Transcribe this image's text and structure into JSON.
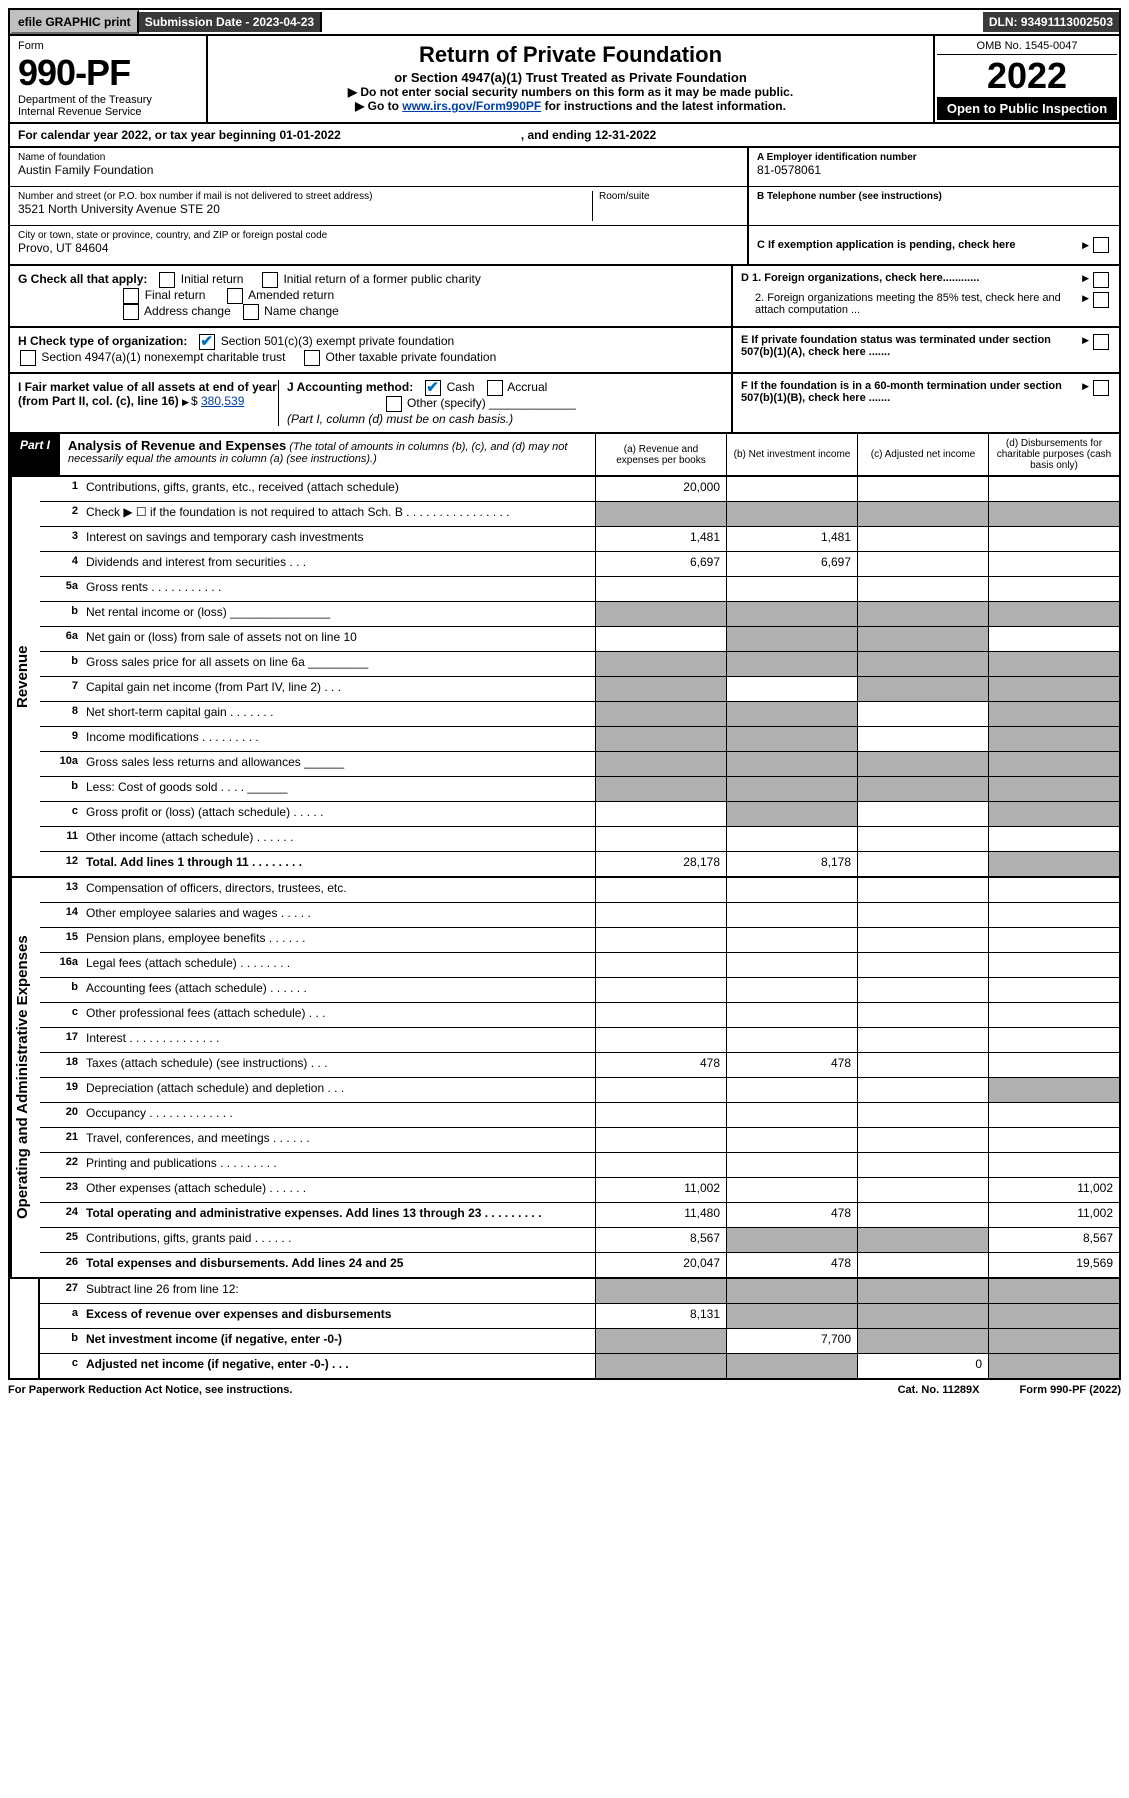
{
  "topbar": {
    "efile": "efile GRAPHIC print",
    "submission_label": "Submission Date - 2023-04-23",
    "dln_label": "DLN: 93491113002503"
  },
  "header": {
    "form_word": "Form",
    "form_number": "990-PF",
    "dept1": "Department of the Treasury",
    "dept2": "Internal Revenue Service",
    "title": "Return of Private Foundation",
    "subtitle": "or Section 4947(a)(1) Trust Treated as Private Foundation",
    "note1": "▶ Do not enter social security numbers on this form as it may be made public.",
    "note2_pre": "▶ Go to ",
    "note2_link": "www.irs.gov/Form990PF",
    "note2_post": " for instructions and the latest information.",
    "omb": "OMB No. 1545-0047",
    "year": "2022",
    "inspect": "Open to Public Inspection"
  },
  "calyear": {
    "prefix": "For calendar year 2022, or tax year beginning 01-01-2022",
    "mid": ", and ending 12-31-2022"
  },
  "info": {
    "name_label": "Name of foundation",
    "name_value": "Austin Family Foundation",
    "addr_label": "Number and street (or P.O. box number if mail is not delivered to street address)",
    "addr_value": "3521 North University Avenue STE 20",
    "room_label": "Room/suite",
    "city_label": "City or town, state or province, country, and ZIP or foreign postal code",
    "city_value": "Provo, UT  84604",
    "a_label": "A Employer identification number",
    "a_value": "81-0578061",
    "b_label": "B Telephone number (see instructions)",
    "c_label": "C If exemption application is pending, check here",
    "d1": "D 1. Foreign organizations, check here............",
    "d2": "2. Foreign organizations meeting the 85% test, check here and attach computation ...",
    "e": "E  If private foundation status was terminated under section 507(b)(1)(A), check here .......",
    "f": "F  If the foundation is in a 60-month termination under section 507(b)(1)(B), check here .......",
    "g_label": "G Check all that apply:",
    "g_opts": [
      "Initial return",
      "Initial return of a former public charity",
      "Final return",
      "Amended return",
      "Address change",
      "Name change"
    ],
    "h_label": "H Check type of organization:",
    "h_opt1": "Section 501(c)(3) exempt private foundation",
    "h_opt2": "Section 4947(a)(1) nonexempt charitable trust",
    "h_opt3": "Other taxable private foundation",
    "i_label": "I Fair market value of all assets at end of year (from Part II, col. (c), line 16)",
    "i_value": "380,539",
    "j_label": "J Accounting method:",
    "j_opt1": "Cash",
    "j_opt2": "Accrual",
    "j_opt3": "Other (specify)",
    "j_note": "(Part I, column (d) must be on cash basis.)"
  },
  "part1": {
    "label": "Part I",
    "title": "Analysis of Revenue and Expenses",
    "title_note": "(The total of amounts in columns (b), (c), and (d) may not necessarily equal the amounts in column (a) (see instructions).)",
    "col_a": "(a) Revenue and expenses per books",
    "col_b": "(b) Net investment income",
    "col_c": "(c) Adjusted net income",
    "col_d": "(d) Disbursements for charitable purposes (cash basis only)"
  },
  "sections": {
    "revenue": "Revenue",
    "expenses": "Operating and Administrative Expenses"
  },
  "lines": [
    {
      "n": "1",
      "label": "Contributions, gifts, grants, etc., received (attach schedule)",
      "a": "20,000",
      "b": "",
      "c": "",
      "d": ""
    },
    {
      "n": "2",
      "label": "Check ▶ ☐ if the foundation is not required to attach Sch. B   .  .  .  .  .  .  .  .  .  .  .  .  .  .  .  .",
      "a": "",
      "b": "",
      "c": "",
      "d": "",
      "greyA": true,
      "greyB": true,
      "greyC": true,
      "greyD": true
    },
    {
      "n": "3",
      "label": "Interest on savings and temporary cash investments",
      "a": "1,481",
      "b": "1,481",
      "c": "",
      "d": ""
    },
    {
      "n": "4",
      "label": "Dividends and interest from securities   .   .   .",
      "a": "6,697",
      "b": "6,697",
      "c": "",
      "d": ""
    },
    {
      "n": "5a",
      "label": "Gross rents   .   .   .   .   .   .   .   .   .   .   .",
      "a": "",
      "b": "",
      "c": "",
      "d": ""
    },
    {
      "n": "b",
      "label": "Net rental income or (loss)  _______________",
      "a": "",
      "b": "",
      "c": "",
      "d": "",
      "greyA": true,
      "greyB": true,
      "greyC": true,
      "greyD": true
    },
    {
      "n": "6a",
      "label": "Net gain or (loss) from sale of assets not on line 10",
      "a": "",
      "b": "",
      "c": "",
      "d": "",
      "greyB": true,
      "greyC": true
    },
    {
      "n": "b",
      "label": "Gross sales price for all assets on line 6a _________",
      "a": "",
      "b": "",
      "c": "",
      "d": "",
      "greyA": true,
      "greyB": true,
      "greyC": true,
      "greyD": true
    },
    {
      "n": "7",
      "label": "Capital gain net income (from Part IV, line 2)   .   .   .",
      "a": "",
      "b": "",
      "c": "",
      "d": "",
      "greyA": true,
      "greyC": true,
      "greyD": true
    },
    {
      "n": "8",
      "label": "Net short-term capital gain   .   .   .   .   .   .   .",
      "a": "",
      "b": "",
      "c": "",
      "d": "",
      "greyA": true,
      "greyB": true,
      "greyD": true
    },
    {
      "n": "9",
      "label": "Income modifications   .   .   .   .   .   .   .   .   .",
      "a": "",
      "b": "",
      "c": "",
      "d": "",
      "greyA": true,
      "greyB": true,
      "greyD": true
    },
    {
      "n": "10a",
      "label": "Gross sales less returns and allowances  ______",
      "a": "",
      "b": "",
      "c": "",
      "d": "",
      "greyA": true,
      "greyB": true,
      "greyC": true,
      "greyD": true
    },
    {
      "n": "b",
      "label": "Less: Cost of goods sold   .   .   .   .  ______",
      "a": "",
      "b": "",
      "c": "",
      "d": "",
      "greyA": true,
      "greyB": true,
      "greyC": true,
      "greyD": true
    },
    {
      "n": "c",
      "label": "Gross profit or (loss) (attach schedule)   .   .   .   .   .",
      "a": "",
      "b": "",
      "c": "",
      "d": "",
      "greyB": true,
      "greyD": true
    },
    {
      "n": "11",
      "label": "Other income (attach schedule)   .   .   .   .   .   .",
      "a": "",
      "b": "",
      "c": "",
      "d": ""
    },
    {
      "n": "12",
      "label": "Total. Add lines 1 through 11   .   .   .   .   .   .   .   .",
      "bold": true,
      "a": "28,178",
      "b": "8,178",
      "c": "",
      "d": "",
      "greyD": true
    }
  ],
  "exp_lines": [
    {
      "n": "13",
      "label": "Compensation of officers, directors, trustees, etc.",
      "a": "",
      "b": "",
      "c": "",
      "d": ""
    },
    {
      "n": "14",
      "label": "Other employee salaries and wages   .   .   .   .   .",
      "a": "",
      "b": "",
      "c": "",
      "d": ""
    },
    {
      "n": "15",
      "label": "Pension plans, employee benefits   .   .   .   .   .   .",
      "a": "",
      "b": "",
      "c": "",
      "d": ""
    },
    {
      "n": "16a",
      "label": "Legal fees (attach schedule)   .   .   .   .   .   .   .   .",
      "a": "",
      "b": "",
      "c": "",
      "d": ""
    },
    {
      "n": "b",
      "label": "Accounting fees (attach schedule)   .   .   .   .   .   .",
      "a": "",
      "b": "",
      "c": "",
      "d": ""
    },
    {
      "n": "c",
      "label": "Other professional fees (attach schedule)   .   .   .",
      "a": "",
      "b": "",
      "c": "",
      "d": ""
    },
    {
      "n": "17",
      "label": "Interest   .   .   .   .   .   .   .   .   .   .   .   .   .   .",
      "a": "",
      "b": "",
      "c": "",
      "d": ""
    },
    {
      "n": "18",
      "label": "Taxes (attach schedule) (see instructions)   .   .   .",
      "a": "478",
      "b": "478",
      "c": "",
      "d": ""
    },
    {
      "n": "19",
      "label": "Depreciation (attach schedule) and depletion   .   .   .",
      "a": "",
      "b": "",
      "c": "",
      "d": "",
      "greyD": true
    },
    {
      "n": "20",
      "label": "Occupancy   .   .   .   .   .   .   .   .   .   .   .   .   .",
      "a": "",
      "b": "",
      "c": "",
      "d": ""
    },
    {
      "n": "21",
      "label": "Travel, conferences, and meetings   .   .   .   .   .   .",
      "a": "",
      "b": "",
      "c": "",
      "d": ""
    },
    {
      "n": "22",
      "label": "Printing and publications   .   .   .   .   .   .   .   .   .",
      "a": "",
      "b": "",
      "c": "",
      "d": ""
    },
    {
      "n": "23",
      "label": "Other expenses (attach schedule)   .   .   .   .   .   .",
      "a": "11,002",
      "b": "",
      "c": "",
      "d": "11,002"
    },
    {
      "n": "24",
      "label": "Total operating and administrative expenses. Add lines 13 through 23   .   .   .   .   .   .   .   .   .",
      "bold": true,
      "a": "11,480",
      "b": "478",
      "c": "",
      "d": "11,002"
    },
    {
      "n": "25",
      "label": "Contributions, gifts, grants paid   .   .   .   .   .   .",
      "a": "8,567",
      "b": "",
      "c": "",
      "d": "8,567",
      "greyB": true,
      "greyC": true
    },
    {
      "n": "26",
      "label": "Total expenses and disbursements. Add lines 24 and 25",
      "bold": true,
      "a": "20,047",
      "b": "478",
      "c": "",
      "d": "19,569"
    }
  ],
  "final_lines": [
    {
      "n": "27",
      "label": "Subtract line 26 from line 12:",
      "a": "",
      "b": "",
      "c": "",
      "d": "",
      "greyA": true,
      "greyB": true,
      "greyC": true,
      "greyD": true
    },
    {
      "n": "a",
      "label": "Excess of revenue over expenses and disbursements",
      "bold": true,
      "a": "8,131",
      "b": "",
      "c": "",
      "d": "",
      "greyB": true,
      "greyC": true,
      "greyD": true
    },
    {
      "n": "b",
      "label": "Net investment income (if negative, enter -0-)",
      "bold": true,
      "a": "",
      "b": "7,700",
      "c": "",
      "d": "",
      "greyA": true,
      "greyC": true,
      "greyD": true
    },
    {
      "n": "c",
      "label": "Adjusted net income (if negative, enter -0-)   .   .   .",
      "bold": true,
      "a": "",
      "b": "",
      "c": "0",
      "d": "",
      "greyA": true,
      "greyB": true,
      "greyD": true
    }
  ],
  "footer": {
    "left": "For Paperwork Reduction Act Notice, see instructions.",
    "mid": "Cat. No. 11289X",
    "right": "Form 990-PF (2022)"
  }
}
